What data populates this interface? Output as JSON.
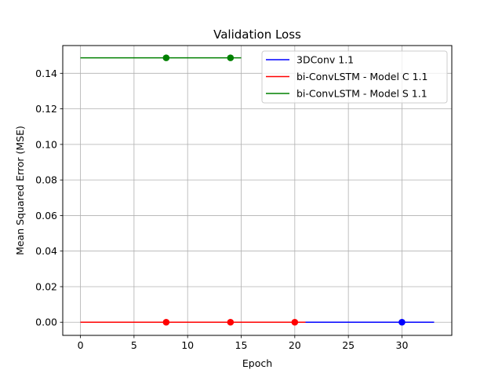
{
  "chart_data": {
    "type": "line",
    "title": "Validation Loss",
    "xlabel": "Epoch",
    "ylabel": "Mean Squared Error (MSE)",
    "xlim": [
      -1.65,
      34.65
    ],
    "ylim": [
      -0.0074,
      0.1556
    ],
    "xticks": [
      0,
      5,
      10,
      15,
      20,
      25,
      30
    ],
    "yticks": [
      0.0,
      0.02,
      0.04,
      0.06,
      0.08,
      0.1,
      0.12,
      0.14
    ],
    "ytick_labels": [
      "0.00",
      "0.02",
      "0.04",
      "0.06",
      "0.08",
      "0.10",
      "0.12",
      "0.14"
    ],
    "grid": true,
    "legend_position": "top-right",
    "series": [
      {
        "name": "3DConv 1.1",
        "color": "#0000ff",
        "x_start": 0,
        "x_end": 33,
        "y": 0.0,
        "markers": [
          30
        ]
      },
      {
        "name": "bi-ConvLSTM - Model C 1.1",
        "color": "#ff0000",
        "x_start": 0,
        "x_end": 21,
        "y": 0.0,
        "markers": [
          8,
          14,
          20
        ]
      },
      {
        "name": "bi-ConvLSTM - Model S 1.1",
        "color": "#008000",
        "x_start": 0,
        "x_end": 15,
        "y": 0.1487,
        "markers": [
          8,
          14
        ]
      }
    ]
  }
}
